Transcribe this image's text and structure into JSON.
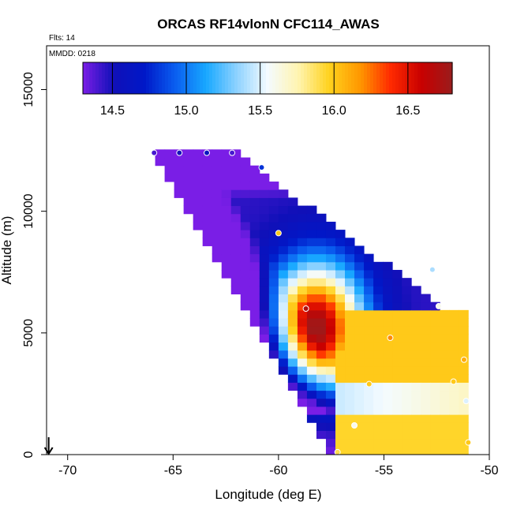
{
  "chart_data": {
    "type": "heatmap",
    "title": "ORCAS RF14vlonN CFC114_AWAS",
    "xlabel": "Longitude (deg E)",
    "ylabel": "Altitude (m)",
    "xlim": [
      -71,
      -50
    ],
    "ylim": [
      0,
      16800
    ],
    "xticks": [
      -70,
      -65,
      -60,
      -55,
      -50
    ],
    "yticks": [
      0,
      5000,
      10000,
      15000
    ],
    "annotations": {
      "flights": "Flts: 14",
      "date": "MMDD: 0218"
    },
    "colorbar": {
      "range": [
        14.3,
        16.8
      ],
      "ticks": [
        "14.5",
        "15.0",
        "15.5",
        "16.0",
        "16.5"
      ],
      "tick_values": [
        14.5,
        15.0,
        15.5,
        16.0,
        16.5
      ],
      "colors": [
        "#7a1ee6",
        "#1010b8",
        "#0018c8",
        "#0a5ef0",
        "#18a8ff",
        "#8ed2ff",
        "#f4fbff",
        "#fff4b0",
        "#ffd21e",
        "#ff9800",
        "#ff2a00",
        "#c80000",
        "#9a1c1c"
      ]
    },
    "observations": [
      {
        "lon": -65.9,
        "alt": 12400,
        "value": 14.4
      },
      {
        "lon": -64.7,
        "alt": 12400,
        "value": 14.5
      },
      {
        "lon": -63.4,
        "alt": 12400,
        "value": 14.6
      },
      {
        "lon": -62.2,
        "alt": 12400,
        "value": 14.4
      },
      {
        "lon": -60.8,
        "alt": 11800,
        "value": 14.8
      },
      {
        "lon": -60.0,
        "alt": 9100,
        "value": 16.0
      },
      {
        "lon": -58.7,
        "alt": 6000,
        "value": 16.7
      },
      {
        "lon": -54.7,
        "alt": 4800,
        "value": 16.2
      },
      {
        "lon": -52.7,
        "alt": 7600,
        "value": 15.4
      },
      {
        "lon": -52.4,
        "alt": 6100,
        "value": 15.6
      },
      {
        "lon": -55.7,
        "alt": 2900,
        "value": 16.0
      },
      {
        "lon": -51.7,
        "alt": 3000,
        "value": 16.0
      },
      {
        "lon": -51.2,
        "alt": 3900,
        "value": 16.1
      },
      {
        "lon": -51.1,
        "alt": 2200,
        "value": 15.5
      },
      {
        "lon": -56.4,
        "alt": 1200,
        "value": 15.6
      },
      {
        "lon": -51.0,
        "alt": 500,
        "value": 16.0
      },
      {
        "lon": -57.2,
        "alt": 100,
        "value": 15.9
      }
    ],
    "marker": {
      "lon": -70.9,
      "alt": 0,
      "symbol": "down-arrow"
    }
  }
}
